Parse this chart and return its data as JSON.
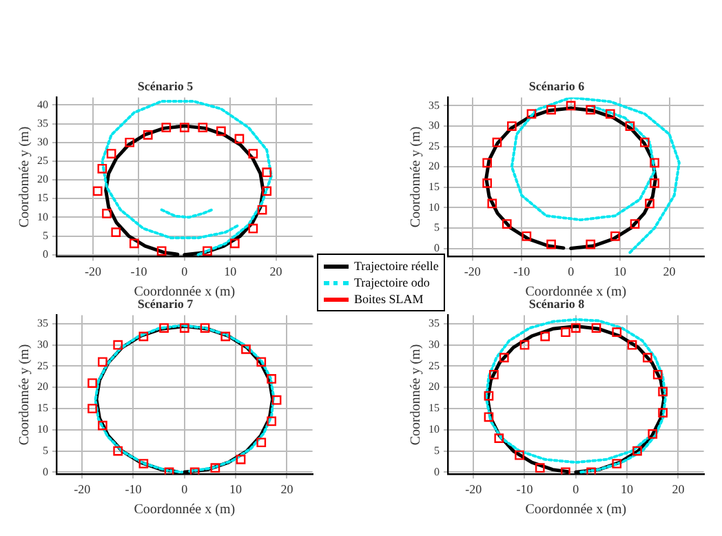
{
  "chart_data": [
    {
      "type": "line",
      "title": "Scénario 5",
      "xlabel": "Coordonnée x (m)",
      "ylabel": "Coordonnée y (m)",
      "xlim": [
        -28,
        28
      ],
      "xticks": [
        -20,
        -10,
        0,
        10,
        20
      ],
      "ylim": [
        -0.5,
        42
      ],
      "yticks": [
        0,
        5,
        10,
        15,
        20,
        25,
        30,
        35,
        40
      ],
      "grid": true,
      "legend": "bottom right",
      "series": [
        {
          "name": "Trajectoire réelle",
          "color": "#000000",
          "x": [
            0,
            4.5,
            8.6,
            12.2,
            14.9,
            16.6,
            17.2,
            16.6,
            14.9,
            12.2,
            8.6,
            4.5,
            0,
            -4.5,
            -8.6,
            -12.2,
            -14.9,
            -16.6,
            -17.2,
            -16.6,
            -14.9,
            -12.2,
            -8.6,
            -4.5,
            -1.5
          ],
          "values": [
            0,
            0.6,
            2.3,
            5,
            8.6,
            12.7,
            17.2,
            21.7,
            25.8,
            29.4,
            32.1,
            33.8,
            34.4,
            33.8,
            32.1,
            29.4,
            25.8,
            21.7,
            17.2,
            12.7,
            8.6,
            5,
            2.3,
            0.6,
            0.1
          ]
        },
        {
          "name": "Trajectoire odo",
          "color": "#00e5ee",
          "line_style": "dotted",
          "x": [
            3,
            9,
            14,
            17,
            19,
            18,
            14,
            8,
            2,
            -5,
            -11,
            -16,
            -18,
            -17,
            -14,
            -9,
            -3,
            3,
            9,
            12,
            null,
            -5,
            -2,
            1,
            4,
            6
          ],
          "values": [
            0,
            3,
            8,
            14,
            21,
            28,
            34,
            39,
            41,
            41,
            38,
            32,
            25,
            18,
            12,
            7,
            4.5,
            4.5,
            6,
            8,
            null,
            12,
            10.3,
            10,
            11,
            12
          ]
        },
        {
          "name": "Boites SLAM",
          "color": "#ff0000",
          "type": "scatter",
          "marker": "square",
          "x": [
            0,
            4,
            8,
            12,
            15,
            18,
            18,
            17,
            15,
            11,
            5,
            -5,
            -11,
            -15,
            -17,
            -19,
            -18,
            -16,
            -12,
            -8,
            -4
          ],
          "values": [
            34,
            34,
            33,
            31,
            27,
            22,
            17,
            12,
            7,
            3,
            1,
            1,
            3,
            6,
            11,
            17,
            23,
            27,
            30,
            32,
            34
          ]
        }
      ]
    },
    {
      "type": "line",
      "title": "Scénario 6",
      "xlabel": "Coordonnée x (m)",
      "ylabel": "Coordonnée y (m)",
      "xlim": [
        -25,
        27
      ],
      "xticks": [
        -20,
        -10,
        0,
        10,
        20
      ],
      "ylim": [
        -2,
        37
      ],
      "yticks": [
        0,
        5,
        10,
        15,
        20,
        25,
        30,
        35
      ],
      "grid": true,
      "series": [
        {
          "color": "#000000",
          "x": [
            0,
            4.5,
            8.6,
            12.2,
            14.9,
            16.6,
            17.2,
            16.6,
            14.9,
            12.2,
            8.6,
            4.5,
            0,
            -4.5,
            -8.6,
            -12.2,
            -14.9,
            -16.6,
            -17.2,
            -16.6,
            -14.9,
            -12.2,
            -8.6,
            -4.5,
            -1.5
          ],
          "values": [
            0,
            0.6,
            2.3,
            5,
            8.6,
            12.7,
            17.2,
            21.7,
            25.8,
            29.4,
            32.1,
            33.8,
            34.4,
            33.8,
            32.1,
            29.4,
            25.8,
            21.7,
            17.2,
            12.7,
            8.6,
            5,
            2.3,
            0.6,
            0.1
          ]
        },
        {
          "color": "#00e5ee",
          "line_style": "dotted",
          "x": [
            12,
            17,
            21,
            22,
            20,
            15,
            8,
            0,
            -7,
            -11,
            -12,
            -10,
            -5,
            2,
            9,
            14,
            17,
            16,
            11,
            4
          ],
          "values": [
            -1,
            5,
            13,
            21,
            28,
            33,
            36,
            37,
            34,
            28,
            20,
            13,
            8,
            7,
            8,
            12,
            19,
            26,
            32,
            35
          ]
        },
        {
          "color": "#ff0000",
          "type": "scatter",
          "marker": "square",
          "x": [
            0,
            4,
            8,
            12,
            15,
            17,
            17,
            16,
            13,
            9,
            4,
            -4,
            -9,
            -13,
            -16,
            -17,
            -17,
            -15,
            -12,
            -8,
            -4
          ],
          "values": [
            35,
            34,
            33,
            30,
            26,
            21,
            16,
            11,
            6,
            3,
            1,
            1,
            3,
            6,
            11,
            16,
            21,
            26,
            30,
            33,
            34
          ]
        }
      ]
    },
    {
      "type": "line",
      "title": "Scénario 7",
      "xlabel": "Coordonnée x (m)",
      "ylabel": "Coordonnée y (m)",
      "xlim": [
        -25,
        25
      ],
      "xticks": [
        -20,
        -10,
        0,
        10,
        20
      ],
      "ylim": [
        -0.5,
        37
      ],
      "yticks": [
        0,
        5,
        10,
        15,
        20,
        25,
        30,
        35
      ],
      "grid": true,
      "series": [
        {
          "color": "#000000",
          "x": [
            0,
            4.5,
            8.6,
            12.2,
            14.9,
            16.6,
            17.2,
            16.6,
            14.9,
            12.2,
            8.6,
            4.5,
            0,
            -4.5,
            -8.6,
            -12.2,
            -14.9,
            -16.6,
            -17.2,
            -16.6,
            -14.9,
            -12.2,
            -8.6,
            -4.5,
            -1.5
          ],
          "values": [
            0,
            0.6,
            2.3,
            5,
            8.6,
            12.7,
            17.2,
            21.7,
            25.8,
            29.4,
            32.1,
            33.8,
            34.4,
            33.8,
            32.1,
            29.4,
            25.8,
            21.7,
            17.2,
            12.7,
            8.6,
            5,
            2.3,
            0.6,
            0.1
          ]
        },
        {
          "color": "#00e5ee",
          "line_style": "dotted",
          "x": [
            1,
            5.5,
            9.5,
            13,
            15.5,
            17,
            17.4,
            16.8,
            15,
            12,
            8.2,
            4,
            -0.5,
            -5,
            -9,
            -12.5,
            -15,
            -16.8,
            -17.4,
            -16.8,
            -15,
            -12,
            -8,
            -3.5,
            -0.5
          ],
          "values": [
            0.2,
            1,
            2.8,
            5.6,
            9.2,
            13.3,
            17.8,
            22.2,
            26.3,
            29.8,
            32.4,
            34,
            34.6,
            33.9,
            32,
            29.2,
            25.6,
            21.5,
            17,
            12.5,
            8.4,
            4.8,
            2.1,
            0.4,
            0
          ]
        },
        {
          "color": "#ff0000",
          "type": "scatter",
          "marker": "square",
          "x": [
            0,
            4,
            8,
            12,
            15,
            17,
            18,
            17,
            15,
            11,
            6,
            2,
            -3,
            -8,
            -13,
            -16,
            -18,
            -18,
            -16,
            -13,
            -8,
            -4
          ],
          "values": [
            34,
            34,
            32,
            29,
            26,
            22,
            17,
            12,
            7,
            3,
            1,
            0,
            0,
            2,
            5,
            11,
            15,
            21,
            26,
            30,
            32,
            34
          ]
        }
      ]
    },
    {
      "type": "line",
      "title": "Scénario 8",
      "xlabel": "Coordonnée x (m)",
      "ylabel": "Coordonnée y (m)",
      "xlim": [
        -25,
        25
      ],
      "xticks": [
        -20,
        -10,
        0,
        10,
        20
      ],
      "ylim": [
        -0.5,
        37
      ],
      "yticks": [
        0,
        5,
        10,
        15,
        20,
        25,
        30,
        35
      ],
      "grid": true,
      "series": [
        {
          "color": "#000000",
          "x": [
            0,
            4.5,
            8.6,
            12.2,
            14.9,
            16.6,
            17.2,
            16.6,
            14.9,
            12.2,
            8.6,
            4.5,
            0,
            -4.5,
            -8.6,
            -12.2,
            -14.9,
            -16.6,
            -17.2,
            -16.6,
            -14.9,
            -12.2,
            -8.6,
            -4.5,
            -1.5
          ],
          "values": [
            0,
            0.6,
            2.3,
            5,
            8.6,
            12.7,
            17.2,
            21.7,
            25.8,
            29.4,
            32.1,
            33.8,
            34.4,
            33.8,
            32.1,
            29.4,
            25.8,
            21.7,
            17.2,
            12.7,
            8.6,
            5,
            2.3,
            0.6,
            0.1
          ]
        },
        {
          "color": "#00e5ee",
          "line_style": "dotted",
          "x": [
            1,
            4.5,
            9,
            13,
            15.5,
            17,
            17.5,
            17,
            15.5,
            13,
            9,
            4.5,
            0,
            -4.5,
            -9,
            -13,
            -15.5,
            -17,
            -17.5,
            -16.6,
            -14.5,
            -11,
            -6,
            0,
            6,
            11,
            14
          ],
          "values": [
            0,
            0.6,
            2.3,
            5,
            8.6,
            12.7,
            17.5,
            22.5,
            27,
            31,
            34,
            35.7,
            36,
            35.5,
            34,
            31,
            27,
            22.5,
            17.5,
            12,
            8,
            5,
            3,
            2.3,
            3,
            5,
            8
          ]
        },
        {
          "color": "#ff0000",
          "type": "scatter",
          "marker": "square",
          "x": [
            0,
            4,
            8,
            11,
            14,
            16,
            17,
            17,
            15,
            12,
            8,
            3,
            -2,
            -7,
            -11,
            -15,
            -17,
            -17,
            -16,
            -14,
            -10,
            -6,
            -2
          ],
          "values": [
            34,
            34,
            33,
            30,
            27,
            23,
            19,
            14,
            9,
            5,
            2,
            0,
            0,
            1,
            4,
            8,
            13,
            18,
            23,
            27,
            30,
            32,
            33
          ]
        }
      ]
    }
  ]
}
